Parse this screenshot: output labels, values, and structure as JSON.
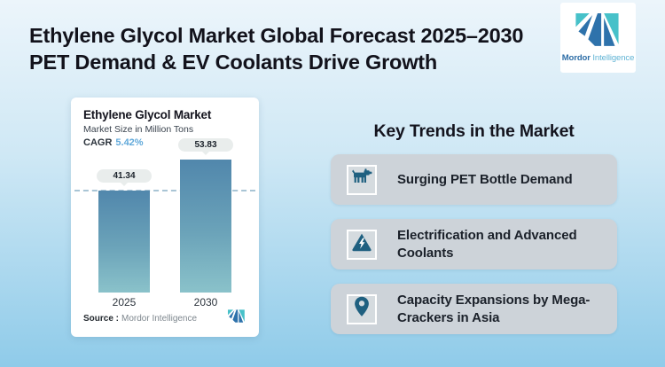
{
  "header": {
    "title_line1": "Ethylene Glycol Market Global Forecast 2025–2030",
    "title_line2": "PET Demand & EV Coolants Drive Growth",
    "logo": {
      "brand_bold": "Mordor",
      "brand_light": "Intelligence"
    }
  },
  "chart_card": {
    "title": "Ethylene Glycol Market",
    "subtitle": "Market Size in Million Tons",
    "cagr_label": "CAGR",
    "cagr_value": "5.42%",
    "source_label": "Source :",
    "source_value": "Mordor Intelligence"
  },
  "chart_data": {
    "type": "bar",
    "categories": [
      "2025",
      "2030"
    ],
    "values": [
      41.34,
      53.83
    ],
    "title": "Ethylene Glycol Market",
    "ylabel": "Market Size in Million Tons",
    "cagr": "5.42%",
    "annotations": [
      {
        "type": "dashed-line",
        "at": 41.34
      }
    ],
    "legend": "none",
    "grid": false
  },
  "trends": {
    "heading": "Key Trends in the Market",
    "items": [
      {
        "icon": "dog-icon",
        "label": "Surging PET Bottle Demand"
      },
      {
        "icon": "high-voltage-icon",
        "label": "Electrification and Advanced Coolants"
      },
      {
        "icon": "location-pin-icon",
        "label": "Capacity Expansions by Mega-Crackers in Asia"
      }
    ]
  },
  "colors": {
    "background_top": "#ecf5fb",
    "background_bottom": "#8fcbe9",
    "bar_top": "#5187ac",
    "bar_bottom": "#8ac2ca",
    "cagr_accent": "#61a9da",
    "trend_card": "#cdd3d9",
    "icon_blue": "#1f6080",
    "logo_blue": "#2e72ab",
    "logo_teal": "#47c1c9"
  }
}
